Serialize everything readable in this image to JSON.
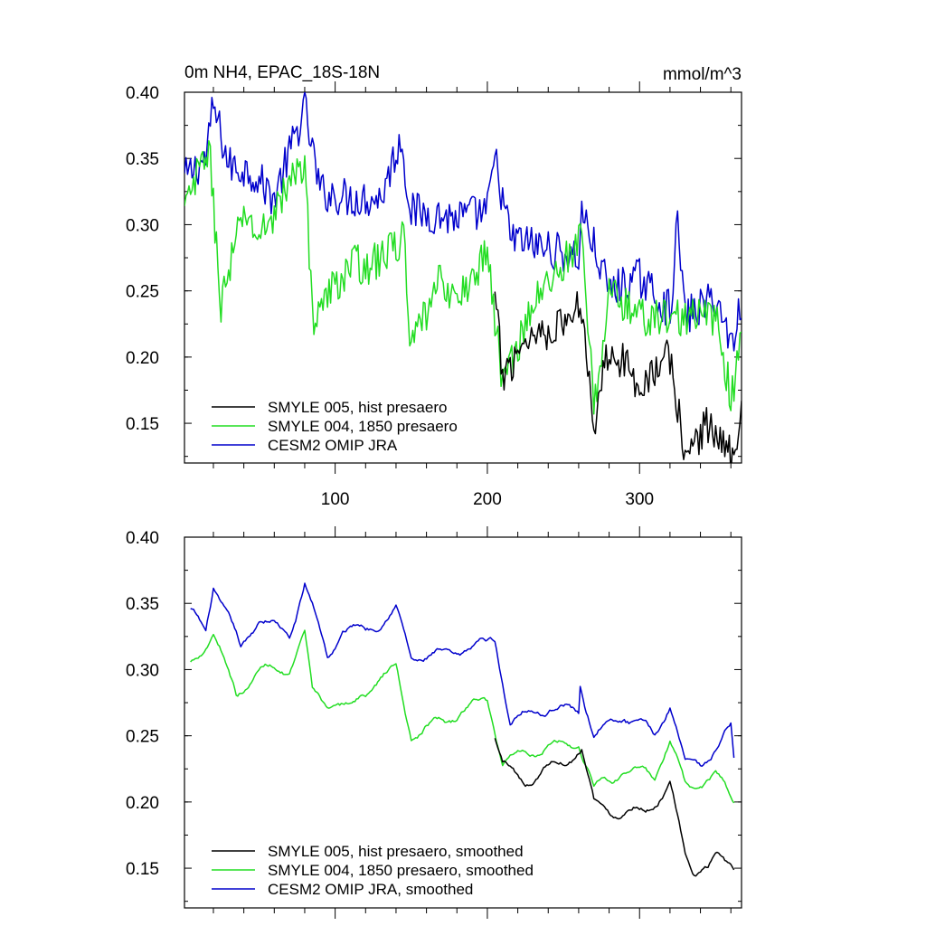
{
  "colors": {
    "hist": "#000000",
    "1850": "#22dd22",
    "omip": "#0000cc"
  },
  "chart_data": [
    {
      "type": "line",
      "title": "0m NH4, EPAC_18S-18N",
      "units": "mmol/m^3",
      "xlim": [
        1,
        367
      ],
      "ylim": [
        0.12,
        0.4
      ],
      "xticks": [
        100,
        200,
        300
      ],
      "xtick_labels": [
        "100",
        "200",
        "300"
      ],
      "yticks": [
        0.15,
        0.2,
        0.25,
        0.3,
        0.35,
        0.4
      ],
      "ytick_labels": [
        "0.15",
        "0.20",
        "0.25",
        "0.30",
        "0.35",
        "0.40"
      ],
      "legend": [
        "SMYLE 005, hist presaero",
        "SMYLE 004, 1850 presaero",
        "CESM2 OMIP JRA"
      ],
      "series_anchors": {
        "omip": [
          [
            1,
            0.335
          ],
          [
            15,
            0.35
          ],
          [
            20,
            0.39
          ],
          [
            30,
            0.345
          ],
          [
            45,
            0.34
          ],
          [
            60,
            0.32
          ],
          [
            80,
            0.388
          ],
          [
            90,
            0.325
          ],
          [
            110,
            0.32
          ],
          [
            130,
            0.32
          ],
          [
            143,
            0.365
          ],
          [
            150,
            0.31
          ],
          [
            180,
            0.305
          ],
          [
            200,
            0.31
          ],
          [
            205,
            0.35
          ],
          [
            215,
            0.29
          ],
          [
            230,
            0.285
          ],
          [
            260,
            0.275
          ],
          [
            262,
            0.31
          ],
          [
            280,
            0.25
          ],
          [
            300,
            0.26
          ],
          [
            320,
            0.235
          ],
          [
            325,
            0.3
          ],
          [
            330,
            0.23
          ],
          [
            350,
            0.245
          ],
          [
            360,
            0.21
          ],
          [
            367,
            0.24
          ]
        ],
        "e1850": [
          [
            1,
            0.31
          ],
          [
            17,
            0.36
          ],
          [
            25,
            0.24
          ],
          [
            40,
            0.31
          ],
          [
            50,
            0.29
          ],
          [
            60,
            0.31
          ],
          [
            80,
            0.35
          ],
          [
            85,
            0.23
          ],
          [
            110,
            0.27
          ],
          [
            125,
            0.27
          ],
          [
            145,
            0.29
          ],
          [
            150,
            0.205
          ],
          [
            170,
            0.26
          ],
          [
            180,
            0.24
          ],
          [
            200,
            0.28
          ],
          [
            210,
            0.18
          ],
          [
            230,
            0.24
          ],
          [
            262,
            0.29
          ],
          [
            270,
            0.16
          ],
          [
            280,
            0.25
          ],
          [
            300,
            0.23
          ],
          [
            330,
            0.23
          ],
          [
            350,
            0.23
          ],
          [
            360,
            0.17
          ],
          [
            367,
            0.21
          ]
        ],
        "hist": [
          [
            205,
            0.245
          ],
          [
            210,
            0.185
          ],
          [
            225,
            0.215
          ],
          [
            250,
            0.225
          ],
          [
            262,
            0.24
          ],
          [
            270,
            0.15
          ],
          [
            280,
            0.21
          ],
          [
            300,
            0.18
          ],
          [
            320,
            0.2
          ],
          [
            330,
            0.125
          ],
          [
            345,
            0.15
          ],
          [
            360,
            0.125
          ],
          [
            367,
            0.16
          ]
        ]
      }
    },
    {
      "type": "line",
      "title": "",
      "units": "",
      "xlim": [
        1,
        367
      ],
      "ylim": [
        0.12,
        0.4
      ],
      "xticks": [
        100,
        200,
        300
      ],
      "xtick_labels": [],
      "yticks": [
        0.15,
        0.2,
        0.25,
        0.3,
        0.35,
        0.4
      ],
      "ytick_labels": [
        "0.15",
        "0.20",
        "0.25",
        "0.30",
        "0.35",
        "0.40"
      ],
      "legend": [
        "SMYLE 005, hist presaero, smoothed",
        "SMYLE 004, 1850 presaero, smoothed",
        "CESM2 OMIP JRA, smoothed"
      ],
      "series_anchors": {
        "omip": [
          [
            5,
            0.342
          ],
          [
            15,
            0.33
          ],
          [
            20,
            0.365
          ],
          [
            38,
            0.315
          ],
          [
            50,
            0.34
          ],
          [
            70,
            0.325
          ],
          [
            80,
            0.365
          ],
          [
            95,
            0.31
          ],
          [
            105,
            0.33
          ],
          [
            120,
            0.33
          ],
          [
            140,
            0.345
          ],
          [
            150,
            0.31
          ],
          [
            170,
            0.31
          ],
          [
            200,
            0.32
          ],
          [
            205,
            0.325
          ],
          [
            215,
            0.26
          ],
          [
            230,
            0.27
          ],
          [
            260,
            0.27
          ],
          [
            260,
            0.295
          ],
          [
            270,
            0.25
          ],
          [
            290,
            0.265
          ],
          [
            310,
            0.25
          ],
          [
            320,
            0.275
          ],
          [
            330,
            0.23
          ],
          [
            340,
            0.23
          ],
          [
            350,
            0.24
          ],
          [
            360,
            0.255
          ],
          [
            362,
            0.232
          ]
        ],
        "e1850": [
          [
            5,
            0.302
          ],
          [
            20,
            0.33
          ],
          [
            35,
            0.28
          ],
          [
            50,
            0.3
          ],
          [
            70,
            0.3
          ],
          [
            80,
            0.325
          ],
          [
            85,
            0.28
          ],
          [
            110,
            0.27
          ],
          [
            125,
            0.29
          ],
          [
            140,
            0.3
          ],
          [
            150,
            0.25
          ],
          [
            170,
            0.26
          ],
          [
            200,
            0.278
          ],
          [
            210,
            0.23
          ],
          [
            230,
            0.24
          ],
          [
            260,
            0.245
          ],
          [
            270,
            0.21
          ],
          [
            290,
            0.225
          ],
          [
            310,
            0.22
          ],
          [
            320,
            0.245
          ],
          [
            330,
            0.21
          ],
          [
            350,
            0.22
          ],
          [
            362,
            0.2
          ]
        ],
        "hist": [
          [
            205,
            0.25
          ],
          [
            210,
            0.228
          ],
          [
            225,
            0.215
          ],
          [
            262,
            0.24
          ],
          [
            270,
            0.2
          ],
          [
            290,
            0.19
          ],
          [
            310,
            0.2
          ],
          [
            320,
            0.21
          ],
          [
            330,
            0.16
          ],
          [
            335,
            0.15
          ],
          [
            345,
            0.148
          ],
          [
            350,
            0.16
          ],
          [
            362,
            0.153
          ]
        ]
      }
    }
  ]
}
